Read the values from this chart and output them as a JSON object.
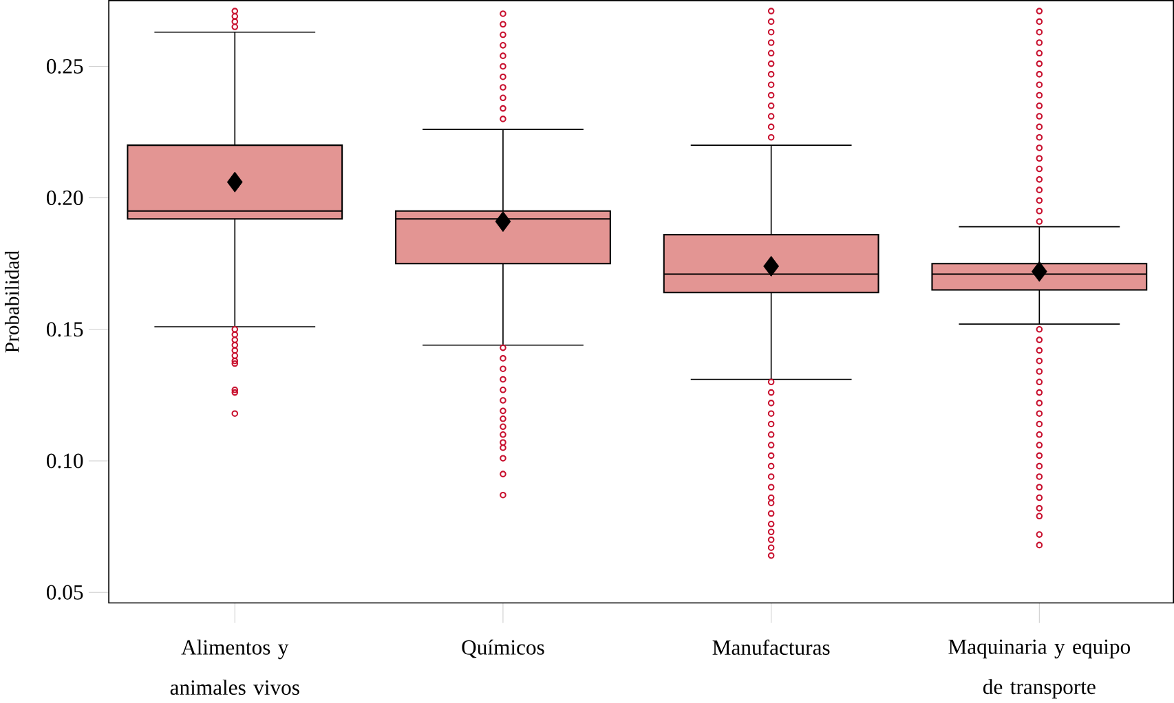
{
  "chart_data": {
    "type": "box",
    "ylabel": "Probabilidad",
    "color": "#e39593",
    "categories": [
      "Alimentos y animales vivos",
      "Químicos",
      "Manufacturas",
      "Maquinaria y equipo de transporte"
    ],
    "boxes": [
      {
        "low": 0.151,
        "q1": 0.192,
        "median": 0.195,
        "q3": 0.22,
        "high": 0.263,
        "mean": 0.206,
        "outliers": [
          0.265,
          0.267,
          0.269,
          0.271,
          0.15,
          0.148,
          0.146,
          0.144,
          0.142,
          0.14,
          0.138,
          0.137,
          0.127,
          0.126,
          0.118
        ]
      },
      {
        "low": 0.144,
        "q1": 0.175,
        "median": 0.192,
        "q3": 0.195,
        "high": 0.226,
        "mean": 0.191,
        "outliers": [
          0.23,
          0.234,
          0.238,
          0.242,
          0.246,
          0.25,
          0.254,
          0.258,
          0.262,
          0.266,
          0.27,
          0.143,
          0.139,
          0.135,
          0.131,
          0.127,
          0.123,
          0.119,
          0.116,
          0.113,
          0.11,
          0.107,
          0.105,
          0.101,
          0.095,
          0.087
        ]
      },
      {
        "low": 0.131,
        "q1": 0.164,
        "median": 0.171,
        "q3": 0.186,
        "high": 0.22,
        "mean": 0.174,
        "outliers": [
          0.223,
          0.227,
          0.231,
          0.235,
          0.239,
          0.243,
          0.247,
          0.251,
          0.255,
          0.259,
          0.263,
          0.267,
          0.271,
          0.13,
          0.126,
          0.122,
          0.118,
          0.114,
          0.11,
          0.106,
          0.102,
          0.098,
          0.094,
          0.09,
          0.086,
          0.084,
          0.08,
          0.076,
          0.073,
          0.07,
          0.067,
          0.064
        ]
      },
      {
        "low": 0.152,
        "q1": 0.165,
        "median": 0.171,
        "q3": 0.175,
        "high": 0.189,
        "mean": 0.172,
        "outliers": [
          0.191,
          0.195,
          0.199,
          0.203,
          0.207,
          0.211,
          0.215,
          0.219,
          0.223,
          0.227,
          0.231,
          0.235,
          0.239,
          0.243,
          0.247,
          0.251,
          0.255,
          0.259,
          0.263,
          0.267,
          0.271,
          0.15,
          0.146,
          0.142,
          0.138,
          0.134,
          0.13,
          0.126,
          0.122,
          0.118,
          0.114,
          0.11,
          0.106,
          0.102,
          0.098,
          0.094,
          0.09,
          0.086,
          0.082,
          0.079,
          0.072,
          0.068
        ]
      }
    ],
    "ylim": [
      0.046,
      0.275
    ],
    "yticks": [
      0.05,
      {
        "value": 0.1,
        "label": "0.10"
      },
      0.15,
      {
        "value": 0.2,
        "label": "0.20"
      },
      0.25
    ],
    "grid": false
  }
}
